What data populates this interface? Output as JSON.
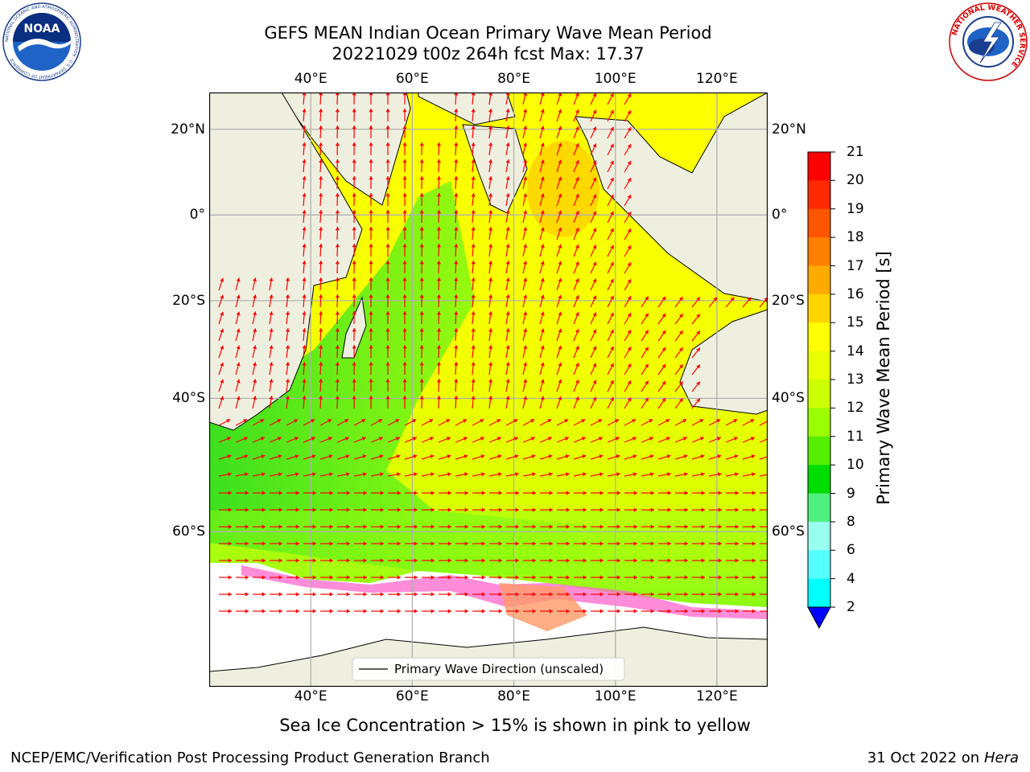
{
  "header": {
    "title_line1": "GEFS MEAN Indian Ocean Primary Wave Mean Period",
    "title_line2": "20221029 t00z 264h fcst   Max: 17.37"
  },
  "logos": {
    "left": {
      "name": "noaa-logo",
      "text": "NOAA",
      "ring_text": "NATIONAL OCEANIC AND ATMOSPHERIC ADMINISTRATION · U.S. DEPARTMENT OF COMMERCE"
    },
    "right": {
      "name": "nws-logo",
      "ring_text": "NATIONAL WEATHER SERVICE"
    }
  },
  "map": {
    "lon_labels": [
      "40°E",
      "60°E",
      "80°E",
      "100°E",
      "120°E"
    ],
    "lon_values": [
      40,
      60,
      80,
      100,
      120
    ],
    "lat_labels": [
      "20°N",
      "0°",
      "20°S",
      "40°S",
      "60°S"
    ],
    "lat_values": [
      20,
      0,
      -20,
      -40,
      -60
    ],
    "extent": {
      "lon_min": 20,
      "lon_max": 130,
      "lat_min": -74,
      "lat_max": 28
    },
    "colors": {
      "land": "#efefdf",
      "ice": "#ffffff",
      "arrow": "#ff0000",
      "grid": "#b0b0b0"
    },
    "legend": {
      "label": "Primary Wave Direction (unscaled)"
    },
    "annotation": "Sea Ice Concentration > 15% is shown in pink to yellow"
  },
  "colorbar": {
    "label": "Primary Wave Mean Period [s]",
    "tick_labels": [
      "21",
      "20",
      "19",
      "18",
      "17",
      "16",
      "15",
      "14",
      "13",
      "12",
      "11",
      "10",
      "9",
      "8",
      "6",
      "4",
      "2"
    ],
    "colors": [
      "#ff0000",
      "#ff2a00",
      "#ff5500",
      "#ff8000",
      "#ffaa00",
      "#ffd400",
      "#ffff00",
      "#e8ff00",
      "#ccff00",
      "#99ff00",
      "#55ee00",
      "#00dd00",
      "#50f080",
      "#99ffee",
      "#55ffff",
      "#00ffff",
      "#0088ff"
    ],
    "extend_color": "#0000ff"
  },
  "footer": {
    "left": "NCEP/EMC/Verification Post Processing Product Generation Branch",
    "right_date": "31 Oct 2022 on ",
    "right_host": "Hera"
  }
}
